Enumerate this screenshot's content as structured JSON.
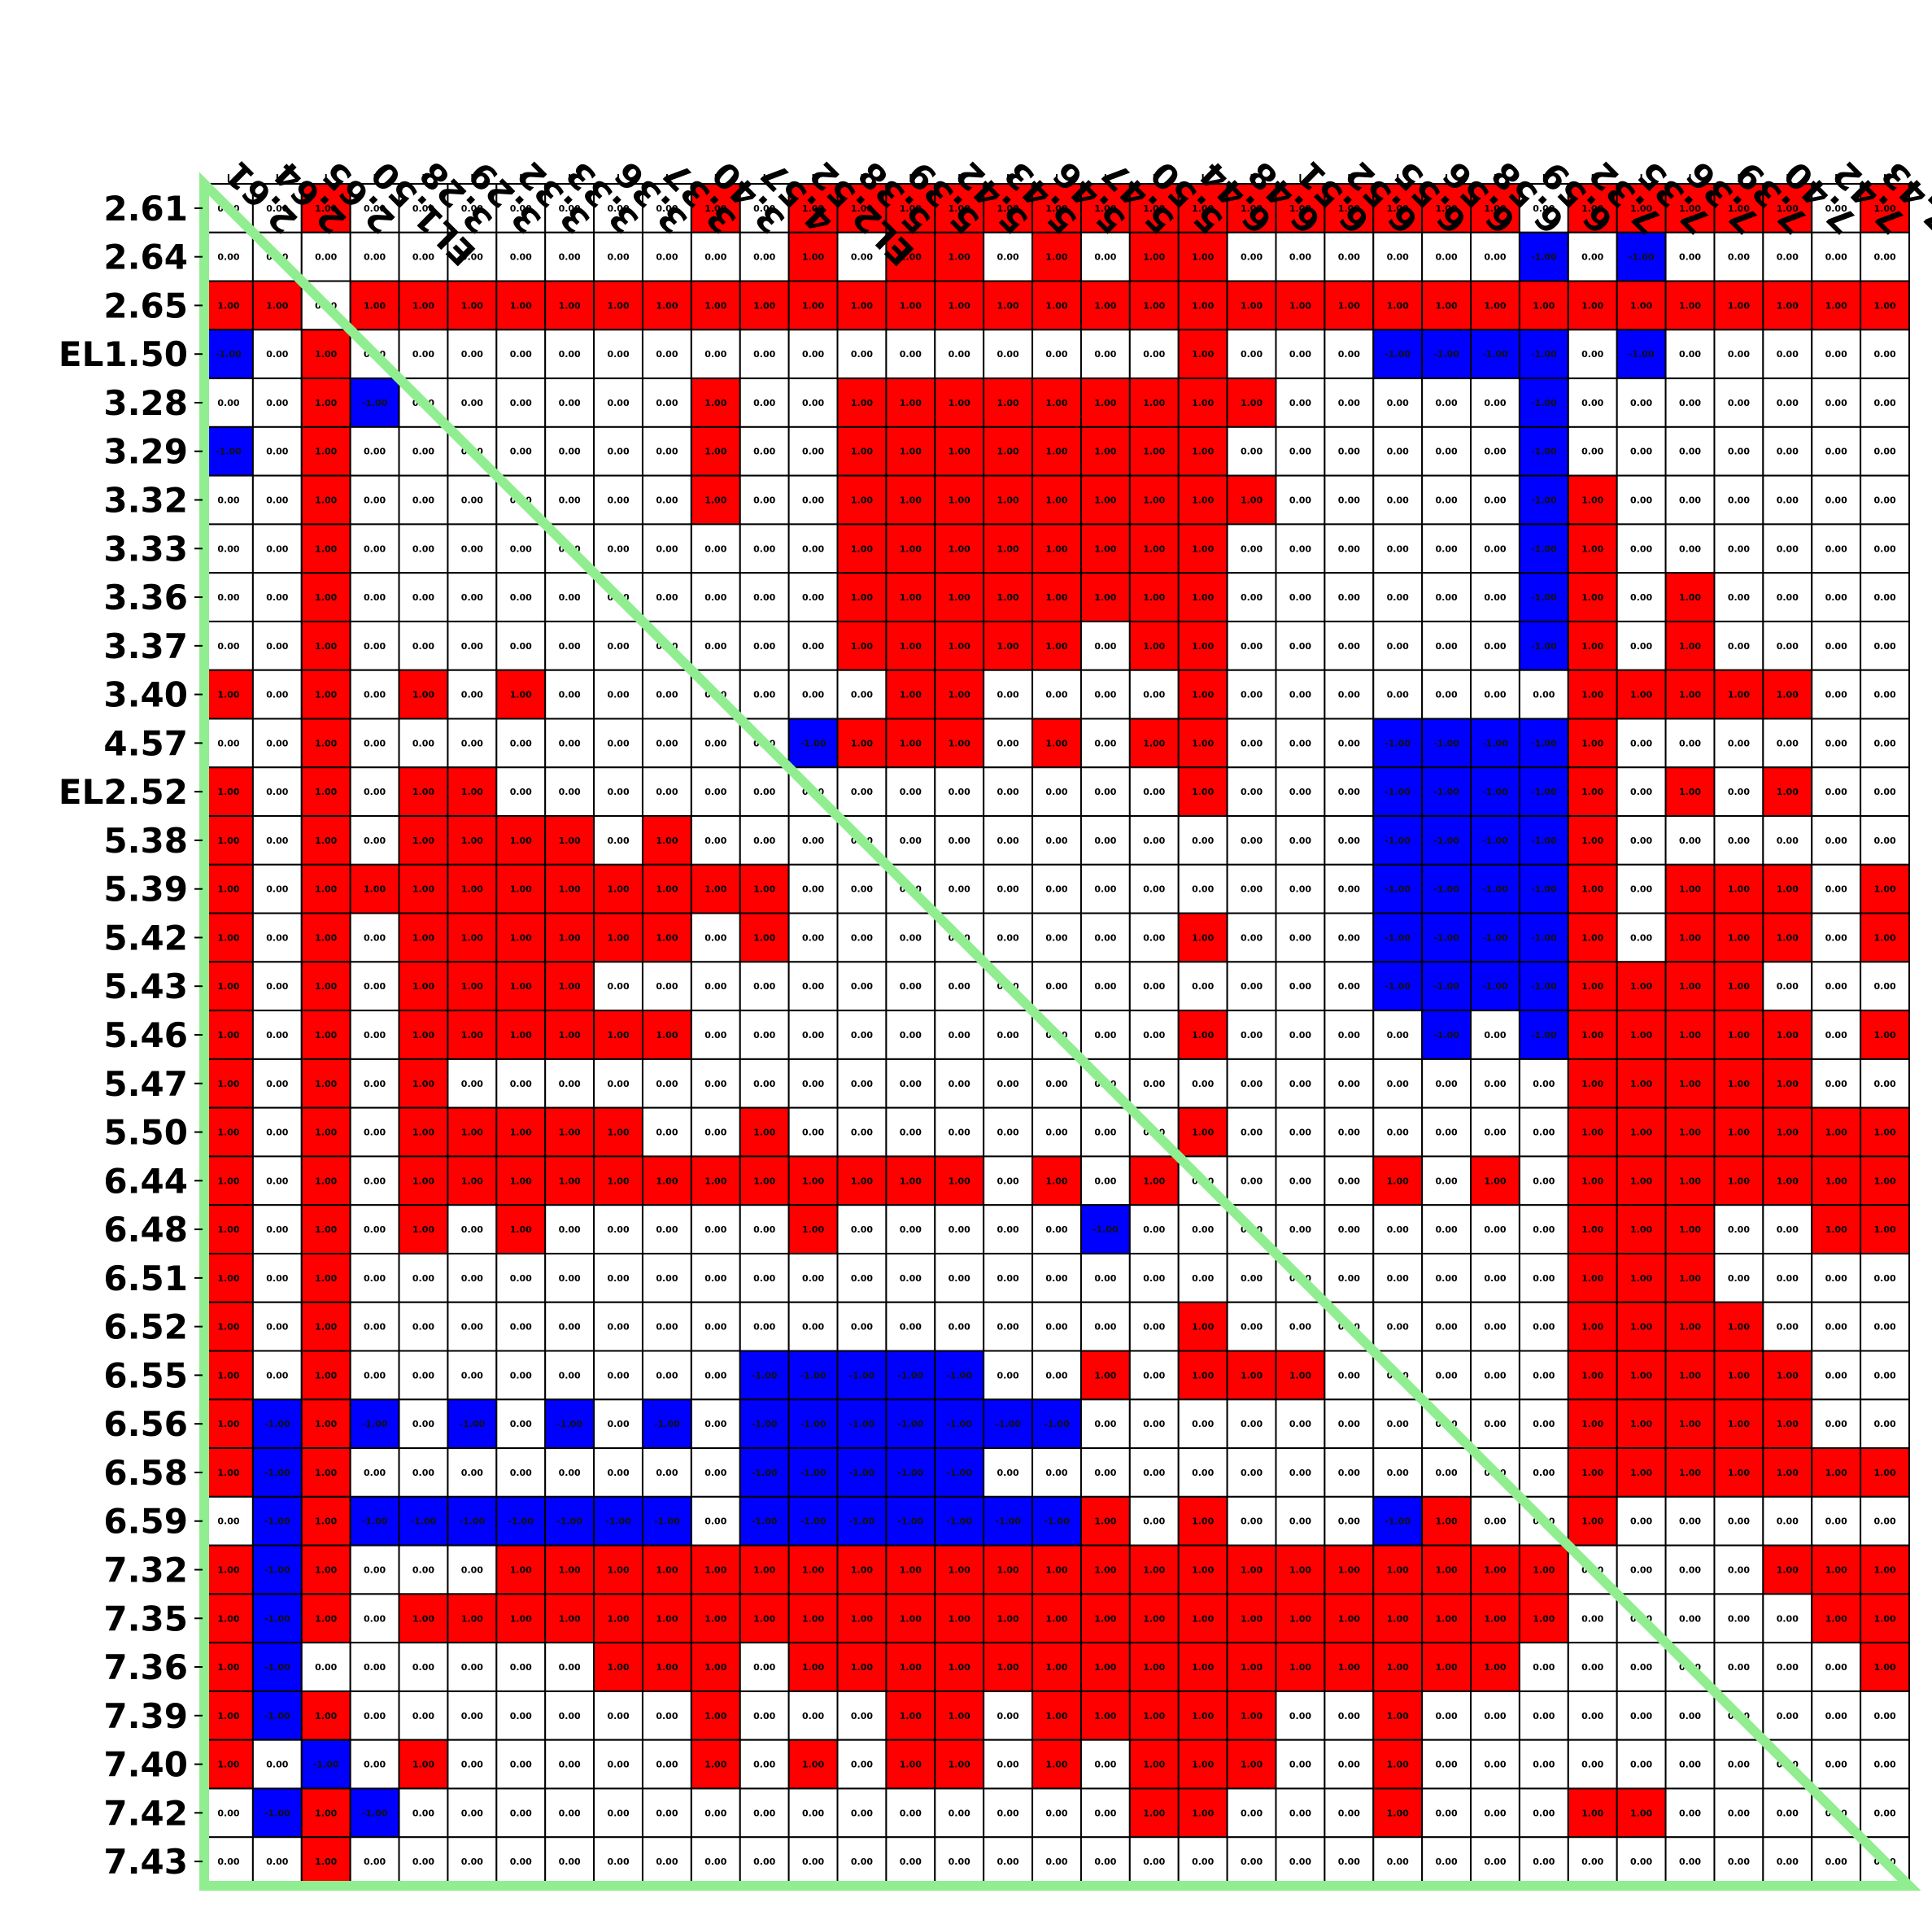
{
  "chart_data": {
    "type": "heatmap",
    "title": "",
    "xlabel": "",
    "ylabel": "",
    "labels": [
      "2.61",
      "2.64",
      "2.65",
      "EL1.50",
      "3.28",
      "3.29",
      "3.32",
      "3.33",
      "3.36",
      "3.37",
      "3.40",
      "4.57",
      "EL2.52",
      "5.38",
      "5.39",
      "5.42",
      "5.43",
      "5.46",
      "5.47",
      "5.50",
      "6.44",
      "6.48",
      "6.51",
      "6.52",
      "6.55",
      "6.56",
      "6.58",
      "6.59",
      "7.32",
      "7.35",
      "7.36",
      "7.39",
      "7.40",
      "7.42",
      "7.43"
    ],
    "value_range": [
      -1,
      1
    ],
    "colors": {
      "positive": "#ff0000",
      "negative": "#0000ff",
      "zero": "#ffffff",
      "diagonal_line": "#90ee90"
    },
    "matrix": [
      [
        0,
        0,
        1,
        0,
        0,
        0,
        0,
        0,
        0,
        0,
        1,
        0,
        1,
        1,
        1,
        1,
        1,
        1,
        1,
        1,
        1,
        1,
        1,
        1,
        1,
        1,
        1,
        0,
        1,
        1,
        1,
        1,
        1,
        0,
        1
      ],
      [
        0,
        0,
        0,
        0,
        0,
        0,
        0,
        0,
        0,
        0,
        0,
        0,
        1,
        0,
        1,
        1,
        0,
        1,
        0,
        1,
        1,
        0,
        0,
        0,
        0,
        0,
        0,
        -1,
        0,
        -1,
        0,
        0,
        0,
        0,
        0
      ],
      [
        1,
        1,
        0,
        1,
        1,
        1,
        1,
        1,
        1,
        1,
        1,
        1,
        1,
        1,
        1,
        1,
        1,
        1,
        1,
        1,
        1,
        1,
        1,
        1,
        1,
        1,
        1,
        1,
        1,
        1,
        1,
        1,
        1,
        1,
        1
      ],
      [
        -1,
        0,
        1,
        0,
        0,
        0,
        0,
        0,
        0,
        0,
        0,
        0,
        0,
        0,
        0,
        0,
        0,
        0,
        0,
        0,
        1,
        0,
        0,
        0,
        -1,
        -1,
        -1,
        -1,
        0,
        -1,
        0,
        0,
        0,
        0,
        0
      ],
      [
        0,
        0,
        1,
        -1,
        0,
        0,
        0,
        0,
        0,
        0,
        1,
        0,
        0,
        1,
        1,
        1,
        1,
        1,
        1,
        1,
        1,
        1,
        0,
        0,
        0,
        0,
        0,
        -1,
        0,
        0,
        0,
        0,
        0,
        0,
        0
      ],
      [
        -1,
        0,
        1,
        0,
        0,
        0,
        0,
        0,
        0,
        0,
        1,
        0,
        0,
        1,
        1,
        1,
        1,
        1,
        1,
        1,
        1,
        0,
        0,
        0,
        0,
        0,
        0,
        -1,
        0,
        0,
        0,
        0,
        0,
        0,
        0
      ],
      [
        0,
        0,
        1,
        0,
        0,
        0,
        0,
        0,
        0,
        0,
        1,
        0,
        0,
        1,
        1,
        1,
        1,
        1,
        1,
        1,
        1,
        1,
        0,
        0,
        0,
        0,
        0,
        -1,
        1,
        0,
        0,
        0,
        0,
        0,
        0
      ],
      [
        0,
        0,
        1,
        0,
        0,
        0,
        0,
        0,
        0,
        0,
        0,
        0,
        0,
        1,
        1,
        1,
        1,
        1,
        1,
        1,
        1,
        0,
        0,
        0,
        0,
        0,
        0,
        -1,
        1,
        0,
        0,
        0,
        0,
        0,
        0
      ],
      [
        0,
        0,
        1,
        0,
        0,
        0,
        0,
        0,
        0,
        0,
        0,
        0,
        0,
        1,
        1,
        1,
        1,
        1,
        1,
        1,
        1,
        0,
        0,
        0,
        0,
        0,
        0,
        -1,
        1,
        0,
        1,
        0,
        0,
        0,
        0
      ],
      [
        0,
        0,
        1,
        0,
        0,
        0,
        0,
        0,
        0,
        0,
        0,
        0,
        0,
        1,
        1,
        1,
        1,
        1,
        0,
        1,
        1,
        0,
        0,
        0,
        0,
        0,
        0,
        -1,
        1,
        0,
        1,
        0,
        0,
        0,
        0
      ],
      [
        1,
        0,
        1,
        0,
        1,
        0,
        1,
        0,
        0,
        0,
        0,
        0,
        0,
        0,
        1,
        1,
        0,
        0,
        0,
        0,
        1,
        0,
        0,
        0,
        0,
        0,
        0,
        0,
        1,
        1,
        1,
        1,
        1,
        0,
        0
      ],
      [
        0,
        0,
        1,
        0,
        0,
        0,
        0,
        0,
        0,
        0,
        0,
        0,
        -1,
        1,
        1,
        1,
        0,
        1,
        0,
        1,
        1,
        0,
        0,
        0,
        -1,
        -1,
        -1,
        -1,
        1,
        0,
        0,
        0,
        0,
        0,
        0
      ],
      [
        1,
        0,
        1,
        0,
        1,
        1,
        0,
        0,
        0,
        0,
        0,
        0,
        0,
        0,
        0,
        0,
        0,
        0,
        0,
        0,
        1,
        0,
        0,
        0,
        -1,
        -1,
        -1,
        -1,
        1,
        0,
        1,
        0,
        1,
        0,
        0
      ],
      [
        1,
        0,
        1,
        0,
        1,
        1,
        1,
        1,
        0,
        1,
        0,
        0,
        0,
        0,
        0,
        0,
        0,
        0,
        0,
        0,
        0,
        0,
        0,
        0,
        -1,
        -1,
        -1,
        -1,
        1,
        0,
        0,
        0,
        0,
        0,
        0
      ],
      [
        1,
        0,
        1,
        1,
        1,
        1,
        1,
        1,
        1,
        1,
        1,
        1,
        0,
        0,
        0,
        0,
        0,
        0,
        0,
        0,
        0,
        0,
        0,
        0,
        -1,
        -1,
        -1,
        -1,
        1,
        0,
        1,
        1,
        1,
        0,
        1
      ],
      [
        1,
        0,
        1,
        0,
        1,
        1,
        1,
        1,
        1,
        1,
        0,
        1,
        0,
        0,
        0,
        0,
        0,
        0,
        0,
        0,
        1,
        0,
        0,
        0,
        -1,
        -1,
        -1,
        -1,
        1,
        0,
        1,
        1,
        1,
        0,
        1
      ],
      [
        1,
        0,
        1,
        0,
        1,
        1,
        1,
        1,
        0,
        0,
        0,
        0,
        0,
        0,
        0,
        0,
        0,
        0,
        0,
        0,
        0,
        0,
        0,
        0,
        -1,
        -1,
        -1,
        -1,
        1,
        1,
        1,
        1,
        0,
        0,
        0
      ],
      [
        1,
        0,
        1,
        0,
        1,
        1,
        1,
        1,
        1,
        1,
        0,
        0,
        0,
        0,
        0,
        0,
        0,
        0,
        0,
        0,
        1,
        0,
        0,
        0,
        0,
        -1,
        0,
        -1,
        1,
        1,
        1,
        1,
        1,
        0,
        1
      ],
      [
        1,
        0,
        1,
        0,
        1,
        0,
        0,
        0,
        0,
        0,
        0,
        0,
        0,
        0,
        0,
        0,
        0,
        0,
        0,
        0,
        0,
        0,
        0,
        0,
        0,
        0,
        0,
        0,
        1,
        1,
        1,
        1,
        1,
        0,
        0
      ],
      [
        1,
        0,
        1,
        0,
        1,
        1,
        1,
        1,
        1,
        0,
        0,
        1,
        0,
        0,
        0,
        0,
        0,
        0,
        0,
        0,
        1,
        0,
        0,
        0,
        0,
        0,
        0,
        0,
        1,
        1,
        1,
        1,
        1,
        1,
        1
      ],
      [
        1,
        0,
        1,
        0,
        1,
        1,
        1,
        1,
        1,
        1,
        1,
        1,
        1,
        1,
        1,
        1,
        0,
        1,
        0,
        1,
        0,
        0,
        0,
        0,
        1,
        0,
        1,
        0,
        1,
        1,
        1,
        1,
        1,
        1,
        1
      ],
      [
        1,
        0,
        1,
        0,
        1,
        0,
        1,
        0,
        0,
        0,
        0,
        0,
        1,
        0,
        0,
        0,
        0,
        0,
        -1,
        0,
        0,
        0,
        0,
        0,
        0,
        0,
        0,
        0,
        1,
        1,
        1,
        0,
        0,
        1,
        1
      ],
      [
        1,
        0,
        1,
        0,
        0,
        0,
        0,
        0,
        0,
        0,
        0,
        0,
        0,
        0,
        0,
        0,
        0,
        0,
        0,
        0,
        0,
        0,
        0,
        0,
        0,
        0,
        0,
        0,
        1,
        1,
        1,
        0,
        0,
        0,
        0
      ],
      [
        1,
        0,
        1,
        0,
        0,
        0,
        0,
        0,
        0,
        0,
        0,
        0,
        0,
        0,
        0,
        0,
        0,
        0,
        0,
        0,
        1,
        0,
        0,
        0,
        0,
        0,
        0,
        0,
        1,
        1,
        1,
        1,
        0,
        0,
        0
      ],
      [
        1,
        0,
        1,
        0,
        0,
        0,
        0,
        0,
        0,
        0,
        0,
        -1,
        -1,
        -1,
        -1,
        -1,
        0,
        0,
        1,
        0,
        1,
        1,
        1,
        0,
        0,
        0,
        0,
        0,
        1,
        1,
        1,
        1,
        1,
        0,
        0
      ],
      [
        1,
        -1,
        1,
        -1,
        0,
        -1,
        0,
        -1,
        0,
        -1,
        0,
        -1,
        -1,
        -1,
        -1,
        -1,
        -1,
        -1,
        0,
        0,
        0,
        0,
        0,
        0,
        0,
        0,
        0,
        0,
        1,
        1,
        1,
        1,
        1,
        0,
        0
      ],
      [
        1,
        -1,
        1,
        0,
        0,
        0,
        0,
        0,
        0,
        0,
        0,
        -1,
        -1,
        -1,
        -1,
        -1,
        0,
        0,
        0,
        0,
        0,
        0,
        0,
        0,
        0,
        0,
        0,
        0,
        1,
        1,
        1,
        1,
        1,
        1,
        1
      ],
      [
        0,
        -1,
        1,
        -1,
        -1,
        -1,
        -1,
        -1,
        -1,
        -1,
        0,
        -1,
        -1,
        -1,
        -1,
        -1,
        -1,
        -1,
        1,
        0,
        1,
        0,
        0,
        0,
        -1,
        1,
        0,
        0,
        1,
        0,
        0,
        0,
        0,
        0,
        0
      ],
      [
        1,
        -1,
        1,
        0,
        0,
        0,
        1,
        1,
        1,
        1,
        1,
        1,
        1,
        1,
        1,
        1,
        1,
        1,
        1,
        1,
        1,
        1,
        1,
        1,
        1,
        1,
        1,
        1,
        0,
        0,
        0,
        0,
        1,
        1,
        1
      ],
      [
        1,
        -1,
        1,
        0,
        1,
        1,
        1,
        1,
        1,
        1,
        1,
        1,
        1,
        1,
        1,
        1,
        1,
        1,
        1,
        1,
        1,
        1,
        1,
        1,
        1,
        1,
        1,
        1,
        0,
        0,
        0,
        0,
        0,
        1,
        1
      ],
      [
        1,
        -1,
        0,
        0,
        0,
        0,
        0,
        0,
        1,
        1,
        1,
        0,
        1,
        1,
        1,
        1,
        1,
        1,
        1,
        1,
        1,
        1,
        1,
        1,
        1,
        1,
        1,
        0,
        0,
        0,
        0,
        0,
        0,
        0,
        1
      ],
      [
        1,
        -1,
        1,
        0,
        0,
        0,
        0,
        0,
        0,
        0,
        1,
        0,
        0,
        0,
        1,
        1,
        0,
        1,
        1,
        1,
        1,
        1,
        0,
        0,
        1,
        0,
        0,
        0,
        0,
        0,
        0,
        0,
        0,
        0,
        0
      ],
      [
        1,
        0,
        -1,
        0,
        1,
        0,
        0,
        0,
        0,
        0,
        1,
        0,
        1,
        0,
        1,
        1,
        0,
        1,
        0,
        1,
        1,
        1,
        0,
        0,
        1,
        0,
        0,
        0,
        0,
        0,
        0,
        0,
        0,
        0,
        0
      ],
      [
        0,
        -1,
        1,
        -1,
        0,
        0,
        0,
        0,
        0,
        0,
        0,
        0,
        0,
        0,
        0,
        0,
        0,
        0,
        0,
        1,
        1,
        0,
        0,
        0,
        1,
        0,
        0,
        0,
        1,
        1,
        0,
        0,
        0,
        0,
        0
      ],
      [
        0,
        0,
        1,
        0,
        0,
        0,
        0,
        0,
        0,
        0,
        0,
        0,
        0,
        0,
        0,
        0,
        0,
        0,
        0,
        0,
        0,
        0,
        0,
        0,
        0,
        0,
        0,
        0,
        0,
        0,
        0,
        0,
        0,
        0,
        0
      ]
    ]
  }
}
